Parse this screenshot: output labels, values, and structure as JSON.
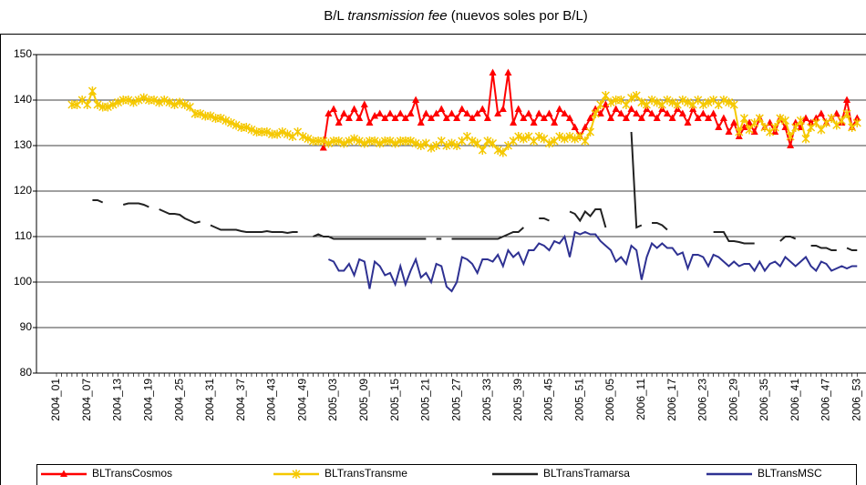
{
  "chart_data": {
    "type": "line",
    "title_parts": [
      "B/L",
      "transmission fee",
      "(nuevos soles por B/L)"
    ],
    "categories": [
      "2004_01",
      null,
      null,
      null,
      null,
      null,
      "2004_07",
      null,
      null,
      null,
      null,
      null,
      "2004_13",
      null,
      null,
      null,
      null,
      null,
      "2004_19",
      null,
      null,
      null,
      null,
      null,
      "2004_25",
      null,
      null,
      null,
      null,
      null,
      "2004_31",
      null,
      null,
      null,
      null,
      null,
      "2004_37",
      null,
      null,
      null,
      null,
      null,
      "2004_43",
      null,
      null,
      null,
      null,
      null,
      "2004_49",
      null,
      null,
      null,
      null,
      null,
      "2005_03",
      null,
      null,
      null,
      null,
      null,
      "2005_09",
      null,
      null,
      null,
      null,
      null,
      "2005_15",
      null,
      null,
      null,
      null,
      null,
      "2005_21",
      null,
      null,
      null,
      null,
      null,
      "2005_27",
      null,
      null,
      null,
      null,
      null,
      "2005_33",
      null,
      null,
      null,
      null,
      null,
      "2005_39",
      null,
      null,
      null,
      null,
      null,
      "2005_45",
      null,
      null,
      null,
      null,
      null,
      "2005_51",
      null,
      null,
      null,
      null,
      null,
      "2006_05",
      null,
      null,
      null,
      null,
      null,
      "2006_11",
      null,
      null,
      null,
      null,
      null,
      "2006_17",
      null,
      null,
      null,
      null,
      null,
      "2006_23",
      null,
      null,
      null,
      null,
      null,
      "2006_29",
      null,
      null,
      null,
      null,
      null,
      "2006_35",
      null,
      null,
      null,
      null,
      null,
      "2006_41",
      null,
      null,
      null,
      null,
      null,
      "2006_47",
      null,
      null,
      null,
      null,
      null,
      "2006_53"
    ],
    "ylim": [
      80,
      150
    ],
    "yticks": [
      80,
      90,
      100,
      110,
      120,
      130,
      140,
      150
    ],
    "grid": true,
    "legend": "bottom",
    "series": [
      {
        "name": "BLTransCosmos",
        "color": "#ff0000",
        "marker": "triangle",
        "values": [
          null,
          null,
          null,
          null,
          null,
          null,
          null,
          null,
          null,
          null,
          null,
          null,
          null,
          null,
          null,
          null,
          null,
          null,
          null,
          null,
          null,
          null,
          null,
          null,
          null,
          null,
          null,
          null,
          null,
          null,
          null,
          null,
          null,
          null,
          null,
          null,
          null,
          null,
          null,
          null,
          null,
          null,
          null,
          null,
          null,
          null,
          null,
          null,
          null,
          null,
          null,
          null,
          129.5,
          137,
          138,
          135,
          137,
          136,
          138,
          136,
          139,
          135,
          136.5,
          137,
          136,
          137,
          136,
          137,
          136,
          137,
          140,
          135,
          137,
          136,
          137,
          138,
          136,
          137,
          136,
          138,
          137,
          136,
          137,
          138,
          136,
          146,
          137,
          138,
          146,
          135,
          138,
          136,
          137,
          135,
          137,
          136,
          137,
          135,
          138,
          137,
          136,
          134,
          132,
          134,
          136,
          138,
          137,
          139,
          136,
          138,
          137,
          136,
          138,
          137,
          136,
          138,
          137,
          136,
          138,
          137,
          136,
          138,
          137,
          135,
          138,
          136,
          137,
          136,
          137,
          134,
          136,
          133,
          135,
          132,
          134,
          135,
          133,
          136,
          134,
          135,
          133,
          136,
          134,
          130,
          135,
          134,
          136,
          135,
          136,
          137,
          135,
          136,
          137,
          135,
          140,
          134,
          136
        ]
      },
      {
        "name": "BLTransTransme",
        "color": "#f5c800",
        "marker": "star",
        "values": [
          null,
          null,
          null,
          139,
          139,
          140,
          139,
          142,
          139,
          138.5,
          138.5,
          139,
          139.5,
          140,
          140,
          139.5,
          140,
          140.5,
          140,
          140,
          139.5,
          140,
          139.5,
          139,
          139.5,
          139,
          138.5,
          137,
          137,
          136.5,
          136.5,
          136,
          136,
          135.5,
          135,
          134.5,
          134,
          134,
          133.5,
          133,
          133,
          133,
          132.5,
          132.5,
          133,
          132.5,
          132,
          133,
          132,
          131.5,
          131,
          131,
          131,
          130.5,
          131,
          131,
          130.5,
          131,
          131.5,
          131,
          130.5,
          131,
          131,
          130.5,
          131,
          131,
          130.5,
          131,
          131,
          131,
          130.5,
          130,
          130.5,
          129.5,
          130,
          131,
          130,
          130.5,
          130,
          131,
          132,
          131,
          130.5,
          129,
          131,
          130.5,
          129,
          128.5,
          130,
          131,
          132,
          131.5,
          132,
          131,
          132,
          131.5,
          130.5,
          131,
          132,
          131.5,
          132,
          131.5,
          132,
          131,
          133,
          137,
          139,
          141,
          139.5,
          140,
          140,
          139,
          140.5,
          141,
          139.5,
          139,
          140,
          139.5,
          139,
          140,
          139.5,
          139,
          140,
          139.5,
          139,
          140,
          139,
          139.5,
          140,
          139,
          140,
          139.5,
          139,
          133,
          136,
          133.5,
          135,
          136,
          134,
          133,
          134,
          136,
          135.5,
          132,
          134,
          135.5,
          131.5,
          134,
          135,
          133.5,
          135,
          136,
          134.5,
          135.5,
          137,
          134,
          135
        ]
      },
      {
        "name": "BLTransTramarsa",
        "color": "#222222",
        "marker": "none",
        "values": [
          null,
          null,
          null,
          null,
          null,
          null,
          null,
          118,
          118,
          117.5,
          null,
          null,
          null,
          117,
          117.3,
          117.3,
          117.3,
          117,
          116.5,
          null,
          116,
          115.5,
          115,
          115,
          114.8,
          114,
          113.5,
          113,
          113.3,
          null,
          112.5,
          112,
          111.5,
          111.5,
          111.5,
          111.5,
          111.2,
          111,
          111,
          111,
          111,
          111.2,
          111,
          111,
          111,
          110.8,
          111,
          111,
          null,
          null,
          110,
          110.5,
          110,
          110,
          109.5,
          109.5,
          109.5,
          109.5,
          109.5,
          109.5,
          109.5,
          109.5,
          109.5,
          109.5,
          109.5,
          109.5,
          109.5,
          109.5,
          109.5,
          109.5,
          109.5,
          109.5,
          109.5,
          null,
          109.5,
          109.5,
          null,
          109.5,
          109.5,
          109.5,
          109.5,
          109.5,
          109.5,
          109.5,
          109.5,
          109.5,
          109.5,
          110,
          110.5,
          111,
          111,
          112,
          null,
          null,
          114,
          114,
          113.5,
          null,
          null,
          null,
          115.5,
          115,
          113.5,
          115.5,
          114.5,
          116,
          116,
          112,
          null,
          null,
          null,
          null,
          133,
          112,
          112.5,
          null,
          113,
          113,
          112.5,
          111.5,
          null,
          110,
          null,
          null,
          null,
          null,
          null,
          null,
          111,
          111,
          111,
          109,
          109,
          108.8,
          108.5,
          108.5,
          108.5,
          null,
          null,
          null,
          null,
          109,
          110,
          110,
          109.5,
          null,
          null,
          108,
          108,
          107.5,
          107.5,
          107,
          107,
          null,
          107.5,
          107,
          107
        ]
      },
      {
        "name": "BLTransMSC",
        "color": "#2e3192",
        "marker": "none",
        "values": [
          null,
          null,
          null,
          null,
          null,
          null,
          null,
          null,
          null,
          null,
          null,
          null,
          null,
          null,
          null,
          null,
          null,
          null,
          null,
          null,
          null,
          null,
          null,
          null,
          null,
          null,
          null,
          null,
          null,
          null,
          null,
          null,
          null,
          null,
          null,
          null,
          null,
          null,
          null,
          null,
          null,
          null,
          null,
          null,
          null,
          null,
          null,
          null,
          null,
          null,
          null,
          null,
          null,
          105,
          104.5,
          102.5,
          102.5,
          104,
          101.5,
          105,
          104.5,
          98.5,
          104.5,
          103.5,
          101.5,
          102,
          99.5,
          103.5,
          99.5,
          102.5,
          105,
          101,
          102,
          100,
          104,
          103.5,
          99,
          98,
          100,
          105.5,
          105,
          104,
          102,
          105,
          105,
          104.5,
          106,
          103.5,
          107,
          105.5,
          106.5,
          104,
          107,
          107,
          108.5,
          108,
          107,
          109,
          108.5,
          110,
          105.5,
          111,
          110.5,
          111,
          110.5,
          110.5,
          109,
          108,
          107,
          104.5,
          105.5,
          104,
          108,
          107,
          100.5,
          105.5,
          108.5,
          107.5,
          108.5,
          107.5,
          107.5,
          106,
          106.5,
          103,
          106,
          106,
          105.5,
          103.5,
          106,
          105.5,
          104.5,
          103.5,
          104.5,
          103.5,
          104,
          104,
          102.5,
          104.5,
          102.5,
          104,
          104.5,
          103.5,
          105.5,
          104.5,
          103.5,
          104.5,
          105.5,
          103.5,
          102.5,
          104.5,
          104,
          102.5,
          103,
          103.5,
          103,
          103.5,
          103.5
        ]
      }
    ]
  }
}
